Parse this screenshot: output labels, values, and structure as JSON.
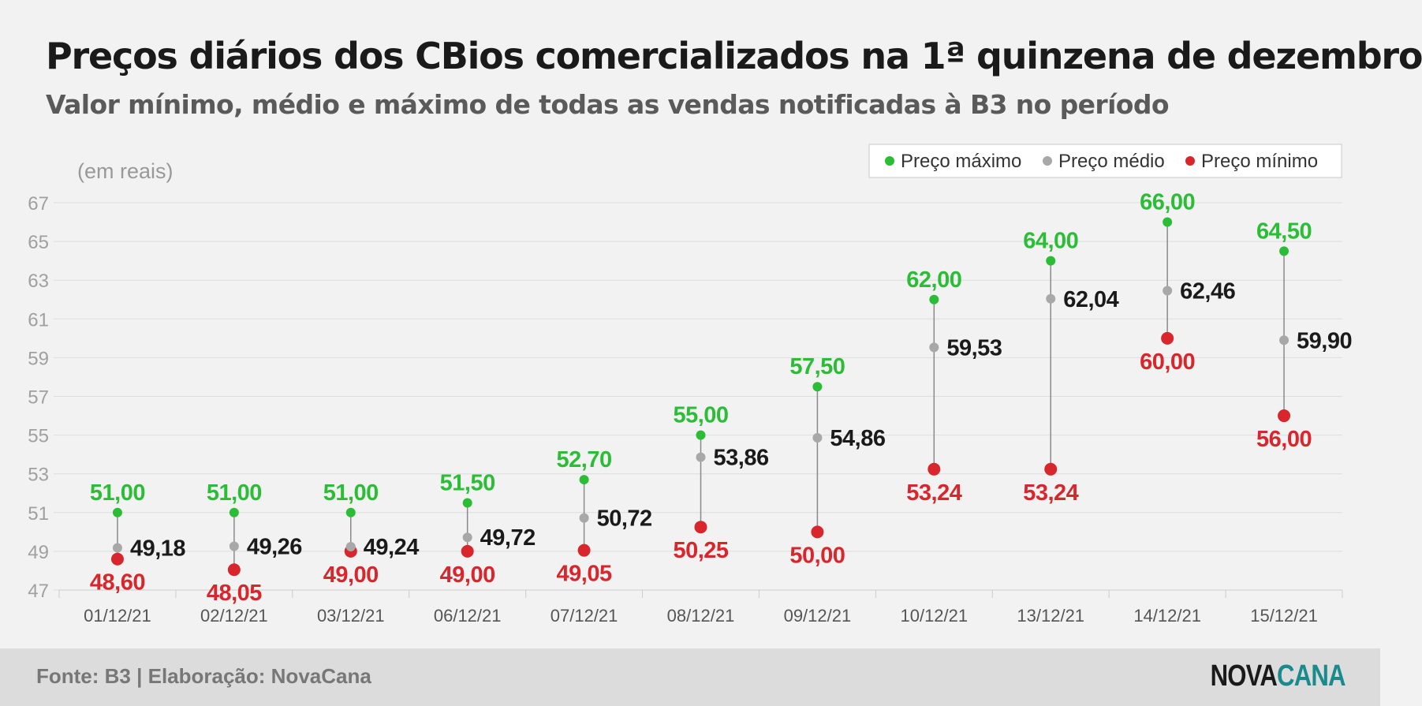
{
  "header": {
    "title": "Preços diários dos CBios comercializados na 1ª quinzena de dezembro",
    "subtitle": "Valor mínimo, médio e máximo de todas as vendas notificadas à B3 no período"
  },
  "footer": {
    "source": "Fonte: B3 | Elaboração: NovaCana",
    "logo_part1": "NOVA",
    "logo_part2": "CANA"
  },
  "colors": {
    "max": "#2bbd36",
    "mean": "#a8a8a8",
    "min": "#d9262c",
    "mean_label": "#1a1a1a",
    "stem": "#8a8a8a",
    "grid": "#dddddd",
    "tick": "#a0a0a0"
  },
  "chart_data": {
    "type": "scatter",
    "unit_label": "(em reais)",
    "categories": [
      "01/12/21",
      "02/12/21",
      "03/12/21",
      "06/12/21",
      "07/12/21",
      "08/12/21",
      "09/12/21",
      "10/12/21",
      "13/12/21",
      "14/12/21",
      "15/12/21"
    ],
    "series": [
      {
        "key": "max",
        "name": "Preço máximo",
        "values": [
          51.0,
          51.0,
          51.0,
          51.5,
          52.7,
          55.0,
          57.5,
          62.0,
          64.0,
          66.0,
          64.5
        ],
        "labels": [
          "51,00",
          "51,00",
          "51,00",
          "51,50",
          "52,70",
          "55,00",
          "57,50",
          "62,00",
          "64,00",
          "66,00",
          "64,50"
        ]
      },
      {
        "key": "mean",
        "name": "Preço médio",
        "values": [
          49.18,
          49.26,
          49.24,
          49.72,
          50.72,
          53.86,
          54.86,
          59.53,
          62.04,
          62.46,
          59.9
        ],
        "labels": [
          "49,18",
          "49,26",
          "49,24",
          "49,72",
          "50,72",
          "53,86",
          "54,86",
          "59,53",
          "62,04",
          "62,46",
          "59,90"
        ]
      },
      {
        "key": "min",
        "name": "Preço mínimo",
        "values": [
          48.6,
          48.05,
          49.0,
          49.0,
          49.05,
          50.25,
          50.0,
          53.24,
          53.24,
          60.0,
          56.0
        ],
        "labels": [
          "48,60",
          "48,05",
          "49,00",
          "49,00",
          "49,05",
          "50,25",
          "50,00",
          "53,24",
          "53,24",
          "60,00",
          "56,00"
        ]
      }
    ],
    "ylim": [
      47,
      67
    ],
    "yticks": [
      47,
      49,
      51,
      53,
      55,
      57,
      59,
      61,
      63,
      65,
      67
    ],
    "grid": true,
    "legend_position": "top-right"
  }
}
